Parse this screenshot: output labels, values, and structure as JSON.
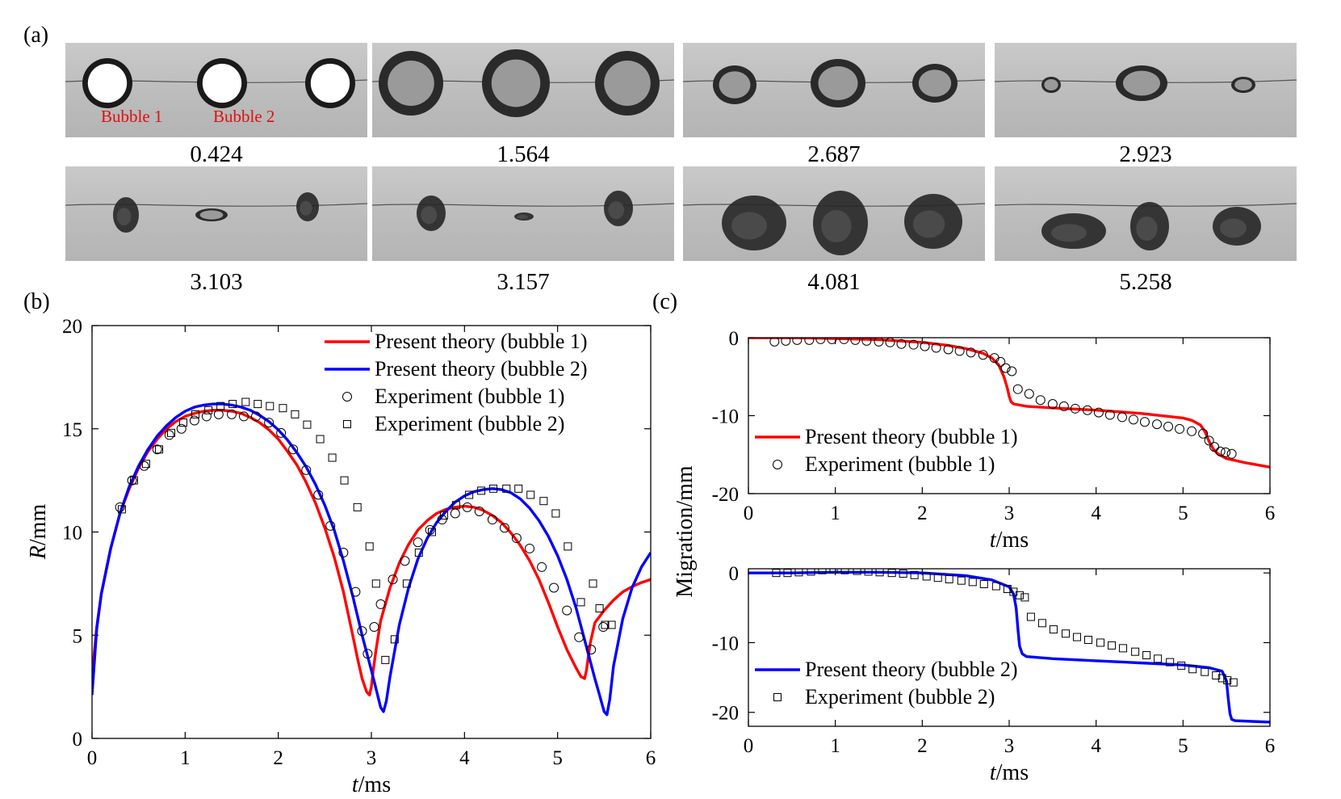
{
  "panel_labels": {
    "a": "(a)",
    "b": "(b)",
    "c": "(c)"
  },
  "photos": {
    "bubble1_label": "Bubble 1",
    "bubble2_label": "Bubble 2",
    "label_color": "#e01010",
    "times": [
      "0.424",
      "1.564",
      "2.687",
      "2.923",
      "3.103",
      "3.157",
      "4.081",
      "5.258"
    ]
  },
  "colors": {
    "bubble1": "#ff0000",
    "bubble2": "#0000ff"
  },
  "chart_data": [
    {
      "id": "b",
      "type": "line",
      "xlabel_italic": "t",
      "xlabel_unit": "/ms",
      "ylabel_italic": "R",
      "ylabel_unit": "/mm",
      "xlim": [
        0,
        6
      ],
      "ylim": [
        0,
        20
      ],
      "xticks": [
        0,
        1,
        2,
        3,
        4,
        5,
        6
      ],
      "yticks": [
        0,
        5,
        10,
        15,
        20
      ],
      "legend_placement": "top-right",
      "series": [
        {
          "name": "Present theory (bubble 1)",
          "kind": "line",
          "color": "#ff0000",
          "x": [
            0,
            0.05,
            0.1,
            0.2,
            0.3,
            0.4,
            0.5,
            0.6,
            0.7,
            0.8,
            0.9,
            1.0,
            1.1,
            1.2,
            1.3,
            1.4,
            1.5,
            1.6,
            1.7,
            1.8,
            1.9,
            2.0,
            2.1,
            2.2,
            2.3,
            2.4,
            2.5,
            2.6,
            2.7,
            2.8,
            2.85,
            2.9,
            2.95,
            2.98,
            3.0,
            3.02,
            3.05,
            3.1,
            3.2,
            3.3,
            3.4,
            3.5,
            3.6,
            3.7,
            3.8,
            3.9,
            4.0,
            4.1,
            4.2,
            4.3,
            4.4,
            4.5,
            4.6,
            4.7,
            4.8,
            4.9,
            5.0,
            5.1,
            5.2,
            5.25,
            5.29,
            5.31,
            5.35,
            5.4,
            5.5,
            5.6,
            5.7,
            5.8,
            5.9,
            6.0
          ],
          "y": [
            3.0,
            5.4,
            7.0,
            9.2,
            10.9,
            12.1,
            13.1,
            13.9,
            14.5,
            15.0,
            15.35,
            15.6,
            15.75,
            15.85,
            15.9,
            15.9,
            15.85,
            15.75,
            15.55,
            15.3,
            14.95,
            14.5,
            13.9,
            13.25,
            12.4,
            11.4,
            10.2,
            8.8,
            7.1,
            5.0,
            3.9,
            2.9,
            2.25,
            2.1,
            2.5,
            3.3,
            4.3,
            5.7,
            7.3,
            8.5,
            9.4,
            10.1,
            10.55,
            10.9,
            11.1,
            11.2,
            11.25,
            11.2,
            11.05,
            10.8,
            10.45,
            9.95,
            9.35,
            8.6,
            7.7,
            6.6,
            5.4,
            4.3,
            3.4,
            3.0,
            2.9,
            3.3,
            4.6,
            5.6,
            6.2,
            6.7,
            7.1,
            7.35,
            7.55,
            7.7
          ]
        },
        {
          "name": "Present theory (bubble 2)",
          "kind": "line",
          "color": "#0000ff",
          "x": [
            0,
            0.05,
            0.1,
            0.2,
            0.3,
            0.4,
            0.5,
            0.6,
            0.7,
            0.8,
            0.9,
            1.0,
            1.1,
            1.2,
            1.3,
            1.4,
            1.5,
            1.6,
            1.7,
            1.8,
            1.9,
            2.0,
            2.1,
            2.2,
            2.3,
            2.4,
            2.5,
            2.6,
            2.7,
            2.8,
            2.9,
            3.0,
            3.05,
            3.1,
            3.13,
            3.16,
            3.2,
            3.3,
            3.4,
            3.5,
            3.6,
            3.7,
            3.8,
            3.9,
            4.0,
            4.1,
            4.2,
            4.3,
            4.4,
            4.5,
            4.6,
            4.7,
            4.8,
            4.9,
            5.0,
            5.1,
            5.2,
            5.3,
            5.4,
            5.45,
            5.5,
            5.53,
            5.56,
            5.6,
            5.7,
            5.8,
            5.9,
            6.0
          ],
          "y": [
            2.1,
            5.3,
            7.0,
            9.2,
            10.9,
            12.2,
            13.2,
            14.0,
            14.65,
            15.15,
            15.55,
            15.85,
            16.05,
            16.15,
            16.2,
            16.2,
            16.15,
            16.05,
            15.9,
            15.65,
            15.35,
            14.95,
            14.45,
            13.85,
            13.15,
            12.3,
            11.3,
            10.1,
            8.6,
            6.9,
            5.0,
            3.3,
            2.4,
            1.5,
            1.3,
            1.8,
            3.0,
            5.5,
            7.3,
            8.7,
            9.7,
            10.45,
            11.0,
            11.45,
            11.75,
            11.95,
            12.05,
            12.1,
            12.05,
            11.9,
            11.6,
            11.15,
            10.55,
            9.8,
            8.85,
            7.7,
            6.3,
            4.6,
            2.9,
            2.1,
            1.3,
            1.15,
            1.9,
            3.5,
            5.8,
            7.3,
            8.3,
            9.0
          ]
        },
        {
          "name": "Experiment (bubble 1)",
          "kind": "circle",
          "x": [
            0.3,
            0.43,
            0.56,
            0.7,
            0.83,
            0.96,
            1.1,
            1.23,
            1.36,
            1.5,
            1.63,
            1.76,
            1.9,
            2.03,
            2.16,
            2.3,
            2.43,
            2.56,
            2.7,
            2.83,
            2.9,
            2.96,
            3.03,
            3.1,
            3.23,
            3.36,
            3.5,
            3.63,
            3.76,
            3.9,
            4.03,
            4.16,
            4.3,
            4.43,
            4.56,
            4.7,
            4.83,
            4.96,
            5.1,
            5.23,
            5.36,
            5.49
          ],
          "y": [
            11.2,
            12.5,
            13.2,
            14.0,
            14.7,
            15.0,
            15.4,
            15.6,
            15.7,
            15.7,
            15.6,
            15.6,
            15.3,
            14.8,
            14.0,
            13.0,
            11.8,
            10.3,
            9.0,
            7.1,
            5.2,
            4.1,
            5.4,
            6.5,
            7.7,
            8.6,
            9.5,
            10.1,
            10.6,
            10.9,
            11.2,
            11.0,
            10.6,
            10.2,
            9.7,
            9.2,
            8.3,
            7.3,
            6.2,
            4.9,
            4.3,
            5.4
          ]
        },
        {
          "name": "Experiment (bubble 2)",
          "kind": "square",
          "x": [
            0.32,
            0.45,
            0.58,
            0.72,
            0.85,
            0.98,
            1.11,
            1.25,
            1.38,
            1.51,
            1.65,
            1.78,
            1.91,
            2.05,
            2.18,
            2.31,
            2.45,
            2.58,
            2.71,
            2.85,
            2.98,
            3.05,
            3.15,
            3.25,
            3.38,
            3.51,
            3.65,
            3.78,
            3.91,
            4.05,
            4.18,
            4.31,
            4.45,
            4.58,
            4.71,
            4.85,
            4.98,
            5.11,
            5.25,
            5.38,
            5.45,
            5.51,
            5.58
          ],
          "y": [
            11.1,
            12.5,
            13.3,
            14.0,
            14.8,
            15.3,
            15.7,
            15.9,
            16.1,
            16.2,
            16.3,
            16.2,
            16.1,
            16.0,
            15.7,
            15.2,
            14.5,
            13.6,
            12.5,
            11.2,
            9.3,
            7.5,
            3.8,
            4.8,
            7.5,
            9.0,
            10.0,
            10.8,
            11.3,
            11.8,
            12.0,
            12.1,
            12.1,
            12.1,
            11.8,
            11.5,
            10.9,
            9.3,
            6.6,
            7.5,
            6.3,
            5.5,
            5.5
          ]
        }
      ],
      "legend": [
        "Present theory (bubble 1)",
        "Present theory (bubble 2)",
        "Experiment (bubble 1)",
        "Experiment (bubble 2)"
      ]
    },
    {
      "id": "c1",
      "type": "line",
      "xlabel_italic": "t",
      "xlabel_unit": "/ms",
      "ylabel": "Migration/mm",
      "xlim": [
        0,
        6
      ],
      "ylim": [
        -20,
        0
      ],
      "xticks": [
        0,
        1,
        2,
        3,
        4,
        5,
        6
      ],
      "yticks": [
        -20,
        -10,
        0
      ],
      "legend_placement": "bottom-left",
      "series": [
        {
          "name": "Present theory (bubble 1)",
          "kind": "line",
          "color": "#ff0000",
          "x": [
            0,
            0.5,
            1.0,
            1.5,
            2.0,
            2.3,
            2.5,
            2.7,
            2.8,
            2.88,
            2.94,
            2.98,
            3.0,
            3.02,
            3.05,
            3.1,
            3.2,
            3.5,
            4.0,
            4.5,
            5.0,
            5.1,
            5.2,
            5.25,
            5.3,
            5.35,
            5.4,
            5.5,
            5.7,
            6.0
          ],
          "y": [
            0,
            0,
            -0.1,
            -0.25,
            -0.6,
            -1.0,
            -1.4,
            -2.0,
            -2.6,
            -3.5,
            -5.0,
            -6.5,
            -7.5,
            -8.2,
            -8.5,
            -8.6,
            -8.8,
            -9.0,
            -9.3,
            -9.7,
            -10.3,
            -10.6,
            -11.2,
            -12.0,
            -13.3,
            -14.3,
            -14.9,
            -15.5,
            -16.0,
            -16.6
          ]
        },
        {
          "name": "Experiment (bubble 1)",
          "kind": "circle",
          "x": [
            0.3,
            0.43,
            0.56,
            0.7,
            0.83,
            0.96,
            1.1,
            1.23,
            1.36,
            1.5,
            1.63,
            1.76,
            1.9,
            2.03,
            2.16,
            2.3,
            2.43,
            2.56,
            2.7,
            2.83,
            2.9,
            2.96,
            3.03,
            3.1,
            3.23,
            3.36,
            3.5,
            3.63,
            3.76,
            3.9,
            4.03,
            4.16,
            4.3,
            4.43,
            4.56,
            4.7,
            4.83,
            4.96,
            5.1,
            5.23,
            5.3,
            5.36,
            5.43,
            5.49,
            5.56
          ],
          "y": [
            -0.5,
            -0.4,
            -0.3,
            -0.3,
            -0.2,
            -0.2,
            -0.2,
            -0.3,
            -0.4,
            -0.5,
            -0.6,
            -0.8,
            -0.9,
            -1.1,
            -1.3,
            -1.5,
            -1.7,
            -1.9,
            -2.2,
            -2.6,
            -3.1,
            -3.9,
            -4.3,
            -6.6,
            -7.2,
            -8.0,
            -8.5,
            -8.8,
            -9.1,
            -9.3,
            -9.6,
            -9.9,
            -10.2,
            -10.5,
            -10.8,
            -11.1,
            -11.4,
            -11.7,
            -12.0,
            -12.3,
            -13.2,
            -14.0,
            -14.6,
            -14.7,
            -14.9
          ]
        }
      ],
      "legend": [
        "Present theory (bubble 1)",
        "Experiment (bubble 1)"
      ]
    },
    {
      "id": "c2",
      "type": "line",
      "xlabel_italic": "t",
      "xlabel_unit": "/ms",
      "ylabel": "",
      "xlim": [
        0,
        6
      ],
      "ylim": [
        -22,
        0.6
      ],
      "xticks": [
        0,
        1,
        2,
        3,
        4,
        5,
        6
      ],
      "yticks": [
        -20,
        -10,
        0
      ],
      "legend_placement": "bottom-left",
      "series": [
        {
          "name": "Present theory (bubble 2)",
          "kind": "line",
          "color": "#0000ff",
          "x": [
            0,
            0.5,
            1.0,
            1.5,
            2.0,
            2.5,
            2.8,
            3.0,
            3.05,
            3.08,
            3.1,
            3.12,
            3.15,
            3.2,
            3.5,
            4.0,
            4.5,
            5.0,
            5.3,
            5.45,
            5.5,
            5.52,
            5.54,
            5.56,
            5.6,
            5.8,
            6.0
          ],
          "y": [
            0,
            0,
            0.1,
            0.1,
            0,
            -0.4,
            -1.0,
            -2.0,
            -3.0,
            -5.0,
            -8.0,
            -10.5,
            -11.6,
            -12.0,
            -12.3,
            -12.6,
            -12.9,
            -13.2,
            -13.6,
            -14.1,
            -15.5,
            -18.0,
            -20.2,
            -21.0,
            -21.2,
            -21.3,
            -21.4
          ]
        },
        {
          "name": "Experiment (bubble 2)",
          "kind": "square",
          "x": [
            0.32,
            0.45,
            0.58,
            0.72,
            0.85,
            0.98,
            1.11,
            1.25,
            1.38,
            1.51,
            1.65,
            1.78,
            1.91,
            2.05,
            2.18,
            2.31,
            2.45,
            2.58,
            2.71,
            2.85,
            2.98,
            3.05,
            3.12,
            3.18,
            3.25,
            3.38,
            3.51,
            3.65,
            3.78,
            3.91,
            4.05,
            4.18,
            4.31,
            4.45,
            4.58,
            4.71,
            4.85,
            4.98,
            5.11,
            5.25,
            5.38,
            5.45,
            5.51,
            5.58
          ],
          "y": [
            0,
            0,
            0.1,
            0.2,
            0.4,
            0.5,
            0.4,
            0.3,
            0.2,
            0.1,
            0,
            -0.1,
            -0.3,
            -0.5,
            -0.7,
            -0.9,
            -1.1,
            -1.3,
            -1.6,
            -1.9,
            -2.3,
            -2.7,
            -3.2,
            -3.5,
            -6.3,
            -7.2,
            -8.1,
            -8.7,
            -9.2,
            -9.6,
            -10.0,
            -10.4,
            -10.8,
            -11.3,
            -11.8,
            -12.3,
            -12.8,
            -13.3,
            -13.8,
            -14.2,
            -14.7,
            -15.1,
            -15.4,
            -15.7
          ]
        }
      ],
      "legend": [
        "Present theory (bubble 2)",
        "Experiment (bubble 2)"
      ]
    }
  ]
}
